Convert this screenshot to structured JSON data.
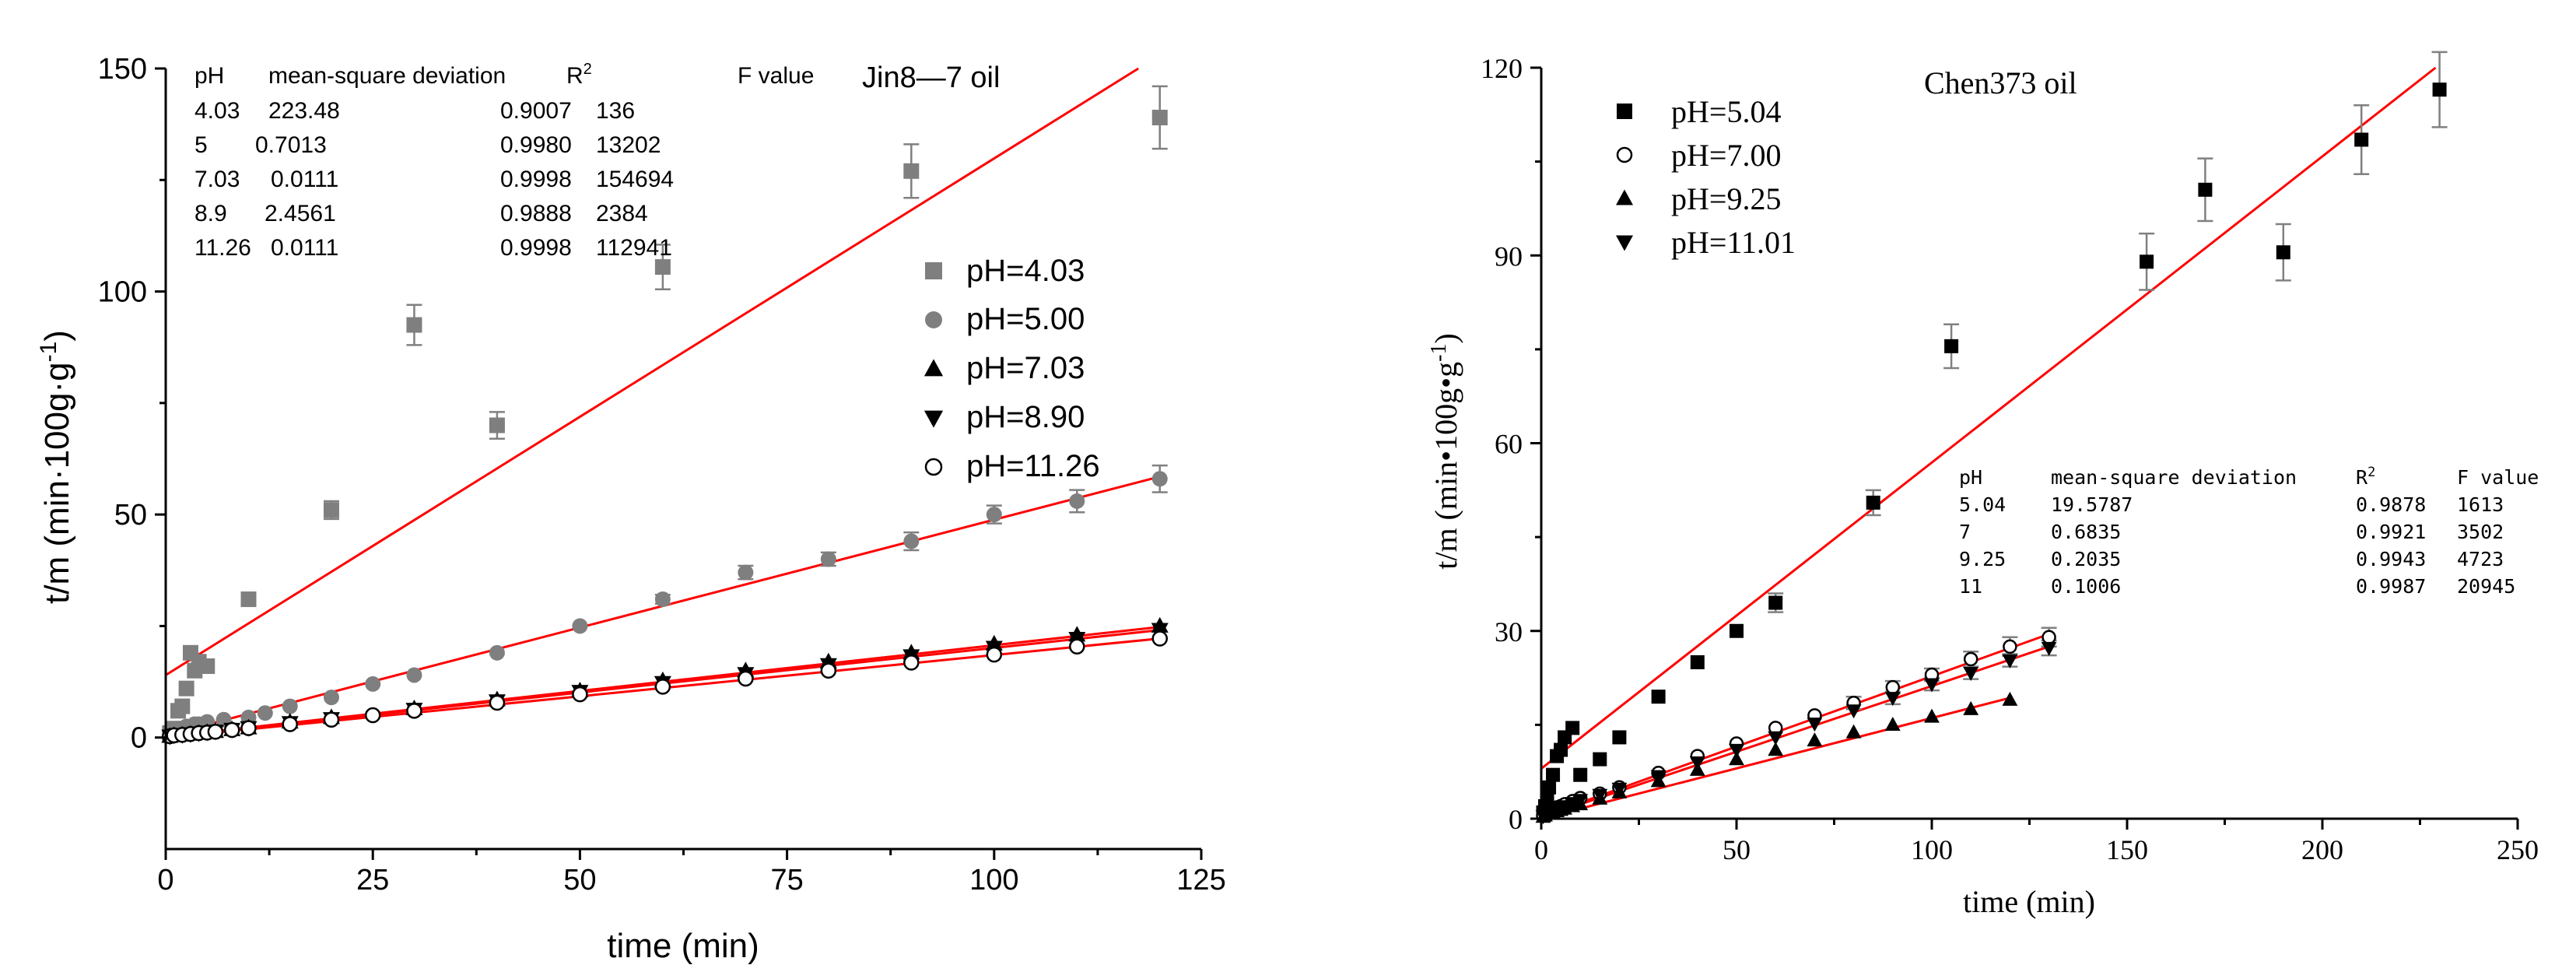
{
  "colors": {
    "fit": "#ff0000",
    "gray": "#7f7f7f",
    "black": "#000000",
    "error": "#808080"
  },
  "chart_data": [
    {
      "type": "scatter",
      "title": "Jin8—7 oil",
      "xlabel": "time (min)",
      "ylabel": "t/m (min·100g·g",
      "ylabel_sup": "-1",
      "ylabel_end": ")",
      "xlim": [
        0,
        125
      ],
      "ylim": [
        -25,
        150
      ],
      "xticks": [
        0,
        25,
        50,
        75,
        100,
        125
      ],
      "yticks": [
        0,
        50,
        100,
        150
      ],
      "legend": "center-right",
      "table": {
        "headers": [
          "pH",
          "mean-square deviation",
          "R",
          "F value"
        ],
        "r_sup": "2",
        "rows": [
          [
            "4.03",
            "223.48",
            "0.9007",
            "136"
          ],
          [
            "5",
            "0.7013",
            "0.9980",
            "13202"
          ],
          [
            "7.03",
            "0.0111",
            "0.9998",
            "154694"
          ],
          [
            "8.9",
            "2.4561",
            "0.9888",
            "2384"
          ],
          [
            "11.26",
            "0.0111",
            "0.9998",
            "112941"
          ]
        ]
      },
      "series": [
        {
          "name": "pH=4.03",
          "marker": "square",
          "color": "#7f7f7f",
          "points": [
            [
              0.5,
              1
            ],
            [
              1,
              2
            ],
            [
              1.5,
              6
            ],
            [
              2,
              7
            ],
            [
              2.5,
              11
            ],
            [
              3,
              19
            ],
            [
              3.5,
              15
            ],
            [
              4,
              17
            ],
            [
              5,
              16
            ],
            [
              10,
              31
            ],
            [
              20,
              51
            ],
            [
              30,
              92.5
            ],
            [
              40,
              70
            ],
            [
              60,
              105.5
            ],
            [
              90,
              127
            ],
            [
              120,
              139
            ]
          ],
          "errors": [
            0,
            0,
            0,
            0,
            0,
            0,
            0,
            0,
            0,
            0,
            2,
            4.5,
            3,
            5,
            6,
            7
          ],
          "fit": [
            [
              0,
              14
            ],
            [
              120,
              153
            ]
          ]
        },
        {
          "name": "pH=5.00",
          "marker": "circle",
          "color": "#7f7f7f",
          "points": [
            [
              0.5,
              1
            ],
            [
              1,
              1.5
            ],
            [
              1.5,
              2
            ],
            [
              2,
              2
            ],
            [
              2.5,
              2.5
            ],
            [
              3,
              2.5
            ],
            [
              3.5,
              3
            ],
            [
              4,
              3
            ],
            [
              5,
              3.5
            ],
            [
              7,
              4
            ],
            [
              10,
              4.5
            ],
            [
              12,
              5.5
            ],
            [
              15,
              7
            ],
            [
              20,
              9
            ],
            [
              25,
              12
            ],
            [
              30,
              14
            ],
            [
              40,
              19
            ],
            [
              50,
              25
            ],
            [
              60,
              31
            ],
            [
              70,
              37
            ],
            [
              80,
              40
            ],
            [
              90,
              44
            ],
            [
              100,
              50
            ],
            [
              110,
              53
            ],
            [
              120,
              58
            ]
          ],
          "errors": [
            0,
            0,
            0,
            0,
            0,
            0,
            0,
            0,
            0,
            0,
            0,
            0,
            0,
            0,
            0,
            0,
            0,
            0,
            1,
            1.5,
            1.5,
            2,
            2,
            2.5,
            3
          ],
          "fit": [
            [
              0,
              0.5
            ],
            [
              120,
              58.5
            ]
          ]
        },
        {
          "name": "pH=7.03",
          "marker": "triangle-up",
          "color": "#000000",
          "points": [
            [
              0.5,
              0.3
            ],
            [
              1,
              0.5
            ],
            [
              2,
              0.6
            ],
            [
              3,
              0.8
            ],
            [
              4,
              1
            ],
            [
              5,
              1.2
            ],
            [
              6,
              1.4
            ],
            [
              8,
              1.8
            ],
            [
              10,
              2.2
            ],
            [
              15,
              3.5
            ],
            [
              20,
              4.5
            ],
            [
              30,
              6.5
            ],
            [
              40,
              8.5
            ],
            [
              50,
              10.5
            ],
            [
              60,
              12.8
            ],
            [
              70,
              15
            ],
            [
              80,
              17
            ],
            [
              90,
              19
            ],
            [
              100,
              21
            ],
            [
              110,
              23
            ],
            [
              120,
              25
            ]
          ],
          "errors": [],
          "fit": [
            [
              0,
              0.2
            ],
            [
              120,
              24.8
            ]
          ]
        },
        {
          "name": "pH=8.90",
          "marker": "triangle-down",
          "color": "#000000",
          "points": [
            [
              0.5,
              0.3
            ],
            [
              1,
              0.5
            ],
            [
              2,
              0.6
            ],
            [
              3,
              0.8
            ],
            [
              4,
              1
            ],
            [
              5,
              1.2
            ],
            [
              6,
              1.4
            ],
            [
              8,
              1.8
            ],
            [
              10,
              2.2
            ],
            [
              15,
              3.3
            ],
            [
              20,
              4.2
            ],
            [
              30,
              6.3
            ],
            [
              40,
              8.2
            ],
            [
              50,
              10.3
            ],
            [
              60,
              12.3
            ],
            [
              70,
              14.3
            ],
            [
              80,
              16.3
            ],
            [
              90,
              18.3
            ],
            [
              100,
              20.2
            ],
            [
              110,
              22.2
            ],
            [
              120,
              24.2
            ]
          ],
          "errors": [],
          "fit": [
            [
              0,
              0.1
            ],
            [
              120,
              24.1
            ]
          ]
        },
        {
          "name": "pH=11.26",
          "marker": "circle-open",
          "color": "#000000",
          "points": [
            [
              0.5,
              0.3
            ],
            [
              1,
              0.5
            ],
            [
              2,
              0.6
            ],
            [
              3,
              0.8
            ],
            [
              4,
              1
            ],
            [
              5,
              1.1
            ],
            [
              6,
              1.3
            ],
            [
              8,
              1.7
            ],
            [
              10,
              2.1
            ],
            [
              15,
              3
            ],
            [
              20,
              4
            ],
            [
              25,
              5
            ],
            [
              30,
              6
            ],
            [
              40,
              7.8
            ],
            [
              50,
              9.7
            ],
            [
              60,
              11.4
            ],
            [
              70,
              13.2
            ],
            [
              80,
              15
            ],
            [
              90,
              16.8
            ],
            [
              100,
              18.6
            ],
            [
              110,
              20.4
            ],
            [
              120,
              22.2
            ]
          ],
          "errors": [],
          "fit": [
            [
              0,
              0
            ],
            [
              120,
              22.2
            ]
          ]
        }
      ]
    },
    {
      "type": "scatter",
      "title": "Chen373 oil",
      "xlabel": "time (min)",
      "ylabel": "t/m (min•100g•g",
      "ylabel_sup": "-1",
      "ylabel_end": ")",
      "xlim": [
        0,
        250
      ],
      "ylim": [
        0,
        120
      ],
      "xticks": [
        0,
        50,
        100,
        150,
        200,
        250
      ],
      "yticks": [
        0,
        30,
        60,
        90,
        120
      ],
      "legend": "top-left",
      "table": {
        "headers": [
          "pH",
          "mean-square deviation",
          "R",
          "F value"
        ],
        "r_sup": "2",
        "rows": [
          [
            "5.04",
            "19.5787",
            "0.9878",
            "1613"
          ],
          [
            "7",
            "0.6835",
            "0.9921",
            "3502"
          ],
          [
            "9.25",
            "0.2035",
            "0.9943",
            "4723"
          ],
          [
            "11",
            "0.1006",
            "0.9987",
            "20945"
          ]
        ]
      },
      "series": [
        {
          "name": "pH=5.04",
          "marker": "square",
          "color": "#000000",
          "points": [
            [
              0.5,
              1
            ],
            [
              1,
              2
            ],
            [
              1.5,
              3
            ],
            [
              2,
              5
            ],
            [
              3,
              7
            ],
            [
              4,
              10
            ],
            [
              5,
              11
            ],
            [
              6,
              13
            ],
            [
              8,
              14.5
            ],
            [
              10,
              7
            ],
            [
              15,
              9.5
            ],
            [
              20,
              13
            ],
            [
              30,
              19.5
            ],
            [
              40,
              25
            ],
            [
              50,
              30
            ],
            [
              60,
              34.5
            ],
            [
              85,
              50.5
            ],
            [
              105,
              75.5
            ],
            [
              155,
              89
            ],
            [
              170,
              100.5
            ],
            [
              190,
              90.5
            ],
            [
              210,
              108.5
            ],
            [
              230,
              116.5
            ]
          ],
          "errors": [
            0,
            0,
            0,
            0,
            0,
            0,
            0,
            0,
            0,
            0,
            0,
            0,
            0,
            0,
            0,
            1.5,
            2,
            3.5,
            4.5,
            5,
            4.5,
            5.5,
            6
          ],
          "fit": [
            [
              0,
              8
            ],
            [
              230,
              120.5
            ]
          ]
        },
        {
          "name": "pH=7.00",
          "marker": "circle-open",
          "color": "#000000",
          "points": [
            [
              0.5,
              0.5
            ],
            [
              1,
              1
            ],
            [
              2,
              1.2
            ],
            [
              3,
              1.5
            ],
            [
              4,
              1.8
            ],
            [
              5,
              2
            ],
            [
              6,
              2.3
            ],
            [
              8,
              2.8
            ],
            [
              10,
              3.3
            ],
            [
              15,
              4
            ],
            [
              20,
              5
            ],
            [
              30,
              7.3
            ],
            [
              40,
              10
            ],
            [
              50,
              12
            ],
            [
              60,
              14.5
            ],
            [
              70,
              16.5
            ],
            [
              80,
              18.5
            ],
            [
              90,
              21
            ],
            [
              100,
              23
            ],
            [
              110,
              25.5
            ],
            [
              120,
              27.5
            ],
            [
              130,
              29
            ]
          ],
          "errors": [
            0,
            0,
            0,
            0,
            0,
            0,
            0,
            0,
            0,
            0,
            0,
            0,
            0,
            0,
            0,
            0,
            1,
            1,
            1,
            1.2,
            1.5,
            1.5
          ],
          "fit": [
            [
              0,
              0.3
            ],
            [
              130,
              29.5
            ]
          ]
        },
        {
          "name": "pH=9.25",
          "marker": "triangle-up",
          "color": "#000000",
          "points": [
            [
              0.5,
              0.3
            ],
            [
              1,
              0.5
            ],
            [
              2,
              0.8
            ],
            [
              3,
              1
            ],
            [
              4,
              1.2
            ],
            [
              5,
              1.4
            ],
            [
              6,
              1.6
            ],
            [
              8,
              2
            ],
            [
              10,
              2.3
            ],
            [
              15,
              3.2
            ],
            [
              20,
              4.2
            ],
            [
              30,
              6
            ],
            [
              40,
              7.8
            ],
            [
              50,
              9.5
            ],
            [
              60,
              11
            ],
            [
              70,
              12.5
            ],
            [
              80,
              13.8
            ],
            [
              90,
              15
            ],
            [
              100,
              16.3
            ],
            [
              110,
              17.5
            ],
            [
              120,
              19
            ]
          ],
          "errors": [],
          "fit": [
            [
              0,
              0
            ],
            [
              120,
              19.3
            ]
          ]
        },
        {
          "name": "pH=11.01",
          "marker": "triangle-down",
          "color": "#000000",
          "points": [
            [
              0.5,
              0.4
            ],
            [
              1,
              0.8
            ],
            [
              2,
              1
            ],
            [
              3,
              1.3
            ],
            [
              4,
              1.6
            ],
            [
              5,
              1.8
            ],
            [
              6,
              2
            ],
            [
              8,
              2.5
            ],
            [
              10,
              3
            ],
            [
              15,
              3.8
            ],
            [
              20,
              4.8
            ],
            [
              30,
              6.8
            ],
            [
              40,
              9
            ],
            [
              50,
              11
            ],
            [
              60,
              13
            ],
            [
              70,
              15.2
            ],
            [
              80,
              17.3
            ],
            [
              90,
              19.3
            ],
            [
              100,
              21.5
            ],
            [
              110,
              23.3
            ],
            [
              120,
              25.3
            ],
            [
              130,
              27.3
            ]
          ],
          "errors": [
            0,
            0,
            0,
            0,
            0,
            0,
            0,
            0,
            0,
            0,
            0,
            0,
            0,
            0,
            0,
            0,
            0,
            1,
            1,
            1,
            1,
            1.2
          ],
          "fit": [
            [
              0,
              0.2
            ],
            [
              130,
              27.5
            ]
          ]
        }
      ]
    }
  ]
}
